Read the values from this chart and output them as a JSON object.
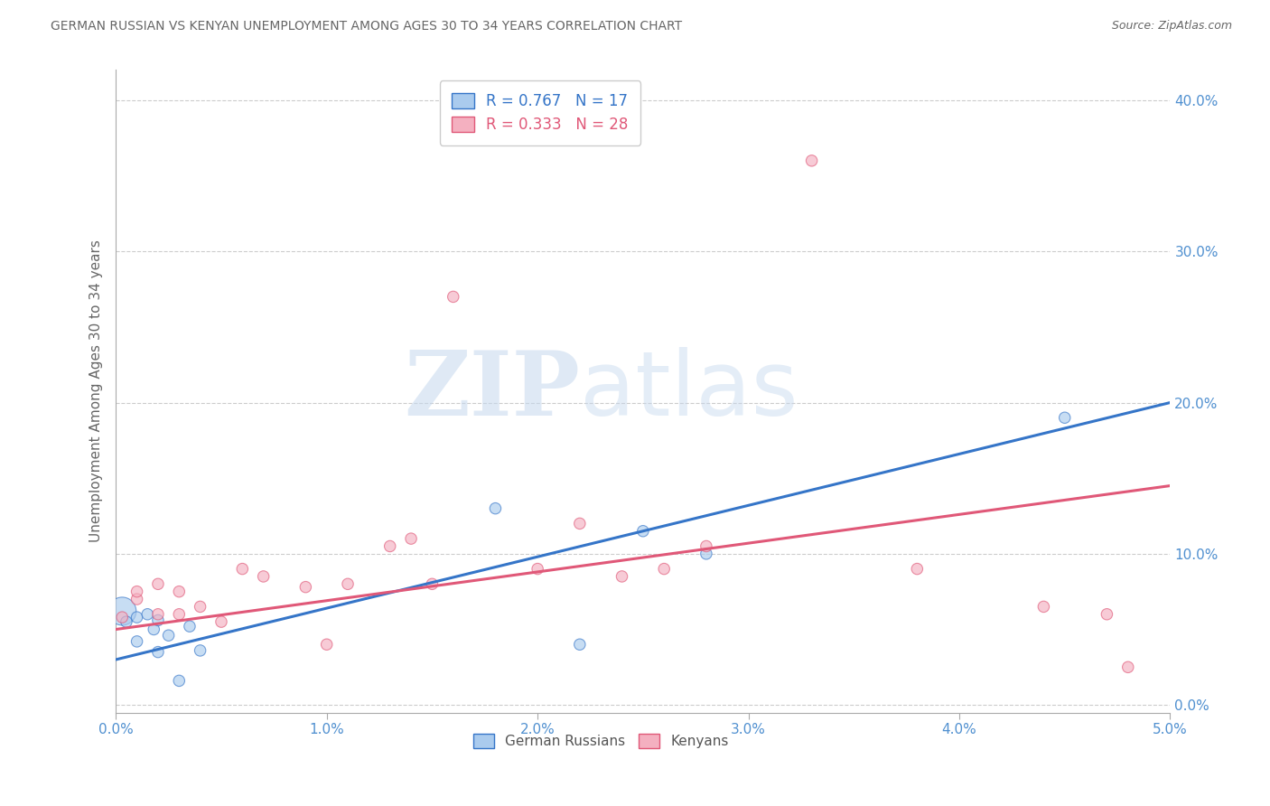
{
  "title": "GERMAN RUSSIAN VS KENYAN UNEMPLOYMENT AMONG AGES 30 TO 34 YEARS CORRELATION CHART",
  "source": "Source: ZipAtlas.com",
  "ylabel": "Unemployment Among Ages 30 to 34 years",
  "xmin": 0.0,
  "xmax": 0.05,
  "ymin": -0.005,
  "ymax": 0.42,
  "yticks": [
    0.0,
    0.1,
    0.2,
    0.3,
    0.4
  ],
  "xticks": [
    0.0,
    0.01,
    0.02,
    0.03,
    0.04,
    0.05
  ],
  "german_russian_x": [
    0.0003,
    0.0005,
    0.001,
    0.001,
    0.0015,
    0.0018,
    0.002,
    0.002,
    0.0025,
    0.003,
    0.0035,
    0.004,
    0.018,
    0.022,
    0.025,
    0.028,
    0.045
  ],
  "german_russian_y": [
    0.062,
    0.055,
    0.058,
    0.042,
    0.06,
    0.05,
    0.035,
    0.056,
    0.046,
    0.016,
    0.052,
    0.036,
    0.13,
    0.04,
    0.115,
    0.1,
    0.19
  ],
  "german_russian_size": [
    500,
    80,
    80,
    80,
    80,
    80,
    80,
    80,
    80,
    80,
    80,
    80,
    80,
    80,
    80,
    80,
    80
  ],
  "kenyan_x": [
    0.0003,
    0.001,
    0.001,
    0.002,
    0.002,
    0.003,
    0.003,
    0.004,
    0.005,
    0.006,
    0.007,
    0.009,
    0.01,
    0.011,
    0.013,
    0.014,
    0.015,
    0.016,
    0.02,
    0.022,
    0.024,
    0.026,
    0.028,
    0.033,
    0.038,
    0.044,
    0.047,
    0.048
  ],
  "kenyan_y": [
    0.058,
    0.07,
    0.075,
    0.06,
    0.08,
    0.06,
    0.075,
    0.065,
    0.055,
    0.09,
    0.085,
    0.078,
    0.04,
    0.08,
    0.105,
    0.11,
    0.08,
    0.27,
    0.09,
    0.12,
    0.085,
    0.09,
    0.105,
    0.36,
    0.09,
    0.065,
    0.06,
    0.025
  ],
  "kenyan_size": [
    80,
    80,
    80,
    80,
    80,
    80,
    80,
    80,
    80,
    80,
    80,
    80,
    80,
    80,
    80,
    80,
    80,
    80,
    80,
    80,
    80,
    80,
    80,
    80,
    80,
    80,
    80,
    80
  ],
  "blue_color": "#AACBEE",
  "pink_color": "#F4B0C0",
  "blue_line_color": "#3575C8",
  "pink_line_color": "#E05878",
  "blue_tick_color": "#5090D0",
  "legend_r_blue": "R = 0.767",
  "legend_n_blue": "N = 17",
  "legend_r_pink": "R = 0.333",
  "legend_n_pink": "N = 28",
  "legend_label_blue": "German Russians",
  "legend_label_pink": "Kenyans",
  "watermark_zip": "ZIP",
  "watermark_atlas": "atlas",
  "background_color": "#FFFFFF",
  "grid_color": "#CCCCCC",
  "title_color": "#666666",
  "axis_label_color": "#666666",
  "blue_regression_intercept": 0.03,
  "blue_regression_slope": 3.4,
  "pink_regression_intercept": 0.05,
  "pink_regression_slope": 1.9
}
